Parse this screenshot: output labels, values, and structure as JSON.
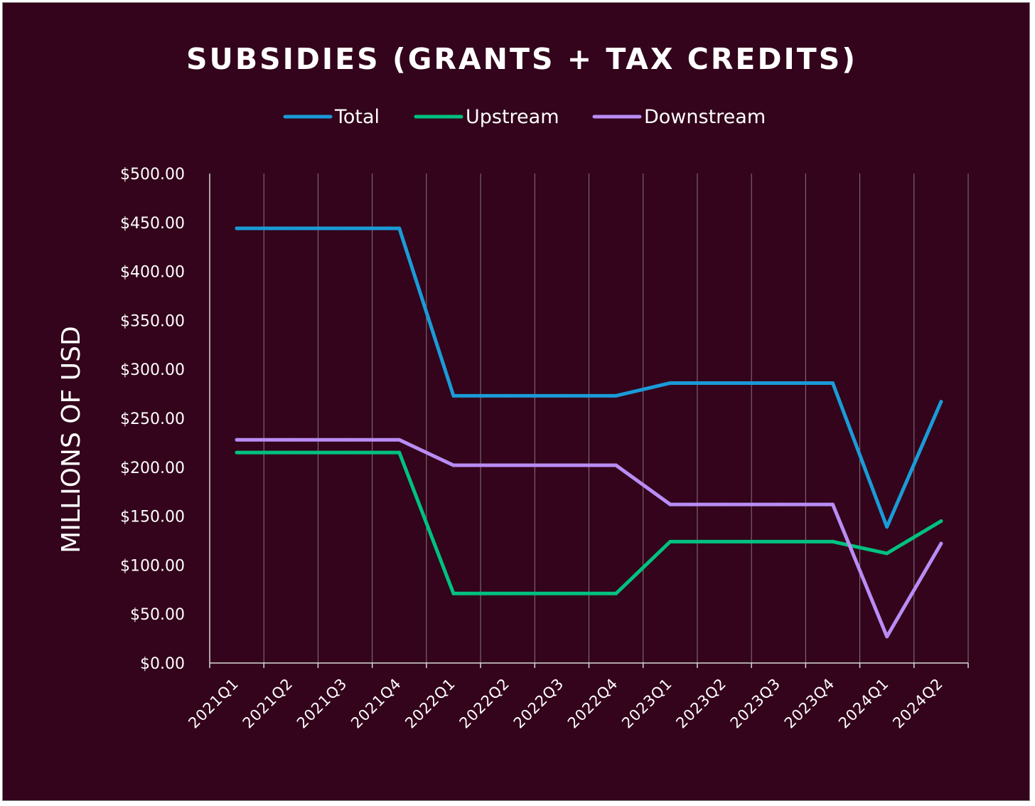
{
  "colors": {
    "background": "#33041b",
    "total": "#1a9bd7",
    "upstream": "#00c180",
    "downstream": "#b98cf5",
    "gridline": "#8a7680",
    "axis": "#d9d9d9"
  },
  "chart_data": {
    "type": "line",
    "title": "SUBSIDIES (GRANTS + TAX CREDITS)",
    "xlabel": "",
    "ylabel": "MILLIONS OF USD",
    "legend_position": "top",
    "grid": "vertical",
    "ylim": [
      0,
      500
    ],
    "y_ticks": [
      "$0.00",
      "$50.00",
      "$100.00",
      "$150.00",
      "$200.00",
      "$250.00",
      "$300.00",
      "$350.00",
      "$400.00",
      "$450.00",
      "$500.00"
    ],
    "categories": [
      "2021Q1",
      "2021Q2",
      "2021Q3",
      "2021Q4",
      "2022Q1",
      "2022Q2",
      "2022Q3",
      "2022Q4",
      "2023Q1",
      "2023Q2",
      "2023Q3",
      "2023Q4",
      "2024Q1",
      "2024Q2"
    ],
    "series": [
      {
        "name": "Total",
        "color_key": "total",
        "values": [
          444,
          444,
          444,
          444,
          273,
          273,
          273,
          273,
          286,
          286,
          286,
          286,
          139,
          267
        ]
      },
      {
        "name": "Upstream",
        "color_key": "upstream",
        "values": [
          215,
          215,
          215,
          215,
          71,
          71,
          71,
          71,
          124,
          124,
          124,
          124,
          112,
          145
        ]
      },
      {
        "name": "Downstream",
        "color_key": "downstream",
        "values": [
          228,
          228,
          228,
          228,
          202,
          202,
          202,
          202,
          162,
          162,
          162,
          162,
          27,
          122
        ]
      }
    ]
  }
}
